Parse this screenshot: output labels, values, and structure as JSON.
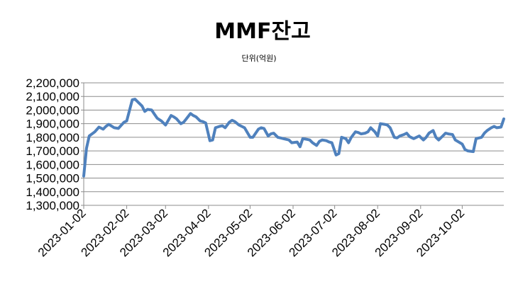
{
  "chart_data": {
    "type": "line",
    "title": "MMF잔고",
    "subtitle": "단위(억원)",
    "xlabel": "",
    "ylabel": "",
    "ylim": [
      1300000,
      2200000
    ],
    "y_ticks": [
      1300000,
      1400000,
      1500000,
      1600000,
      1700000,
      1800000,
      1900000,
      2000000,
      2100000,
      2200000
    ],
    "y_tick_labels": [
      "1,300,000",
      "1,400,000",
      "1,500,000",
      "1,600,000",
      "1,700,000",
      "1,800,000",
      "1,900,000",
      "2,000,000",
      "2,100,000",
      "2,200,000"
    ],
    "x_tick_labels": [
      "2023-01-02",
      "2023-02-02",
      "2023-03-02",
      "2023-04-02",
      "2023-05-02",
      "2023-06-02",
      "2023-07-02",
      "2023-08-02",
      "2023-09-02",
      "2023-10-02"
    ],
    "grid": true,
    "line_color": "#4f81bd",
    "series": [
      {
        "x": [
          "2023-01-02",
          "2023-01-04",
          "2023-01-06",
          "2023-01-10",
          "2023-01-13",
          "2023-01-16",
          "2023-01-18",
          "2023-01-20",
          "2023-01-24",
          "2023-01-27",
          "2023-01-31",
          "2023-02-02",
          "2023-02-06",
          "2023-02-08",
          "2023-02-10",
          "2023-02-13",
          "2023-02-15",
          "2023-02-17",
          "2023-02-20",
          "2023-02-22",
          "2023-02-24",
          "2023-02-27",
          "2023-03-02",
          "2023-03-06",
          "2023-03-08",
          "2023-03-10",
          "2023-03-13",
          "2023-03-15",
          "2023-03-17",
          "2023-03-20",
          "2023-03-22",
          "2023-03-24",
          "2023-03-27",
          "2023-03-29",
          "2023-03-31",
          "2023-04-03",
          "2023-04-05",
          "2023-04-07",
          "2023-04-10",
          "2023-04-12",
          "2023-04-14",
          "2023-04-17",
          "2023-04-19",
          "2023-04-21",
          "2023-04-24",
          "2023-04-26",
          "2023-04-28",
          "2023-05-02",
          "2023-05-04",
          "2023-05-08",
          "2023-05-10",
          "2023-05-12",
          "2023-05-15",
          "2023-05-17",
          "2023-05-19",
          "2023-05-22",
          "2023-05-24",
          "2023-05-26",
          "2023-05-30",
          "2023-06-01",
          "2023-06-05",
          "2023-06-07",
          "2023-06-09",
          "2023-06-12",
          "2023-06-14",
          "2023-06-16",
          "2023-06-19",
          "2023-06-21",
          "2023-06-23",
          "2023-06-26",
          "2023-06-28",
          "2023-06-30",
          "2023-07-03",
          "2023-07-05",
          "2023-07-07",
          "2023-07-10",
          "2023-07-12",
          "2023-07-14",
          "2023-07-17",
          "2023-07-19",
          "2023-07-21",
          "2023-07-24",
          "2023-07-26",
          "2023-07-28",
          "2023-07-31",
          "2023-08-02",
          "2023-08-04",
          "2023-08-07",
          "2023-08-09",
          "2023-08-11",
          "2023-08-14",
          "2023-08-16",
          "2023-08-18",
          "2023-08-21",
          "2023-08-23",
          "2023-08-25",
          "2023-08-28",
          "2023-08-30",
          "2023-09-01",
          "2023-09-04",
          "2023-09-06",
          "2023-09-08",
          "2023-09-11",
          "2023-09-13",
          "2023-09-15",
          "2023-09-18",
          "2023-09-20",
          "2023-09-22",
          "2023-09-25",
          "2023-09-27",
          "2023-10-02",
          "2023-10-04",
          "2023-10-06",
          "2023-10-10",
          "2023-10-12",
          "2023-10-16",
          "2023-10-18",
          "2023-10-20",
          "2023-10-23",
          "2023-10-25",
          "2023-10-27",
          "2023-10-30",
          "2023-11-01"
        ],
        "values": [
          1515000,
          1720000,
          1810000,
          1840000,
          1875000,
          1860000,
          1880000,
          1895000,
          1870000,
          1865000,
          1910000,
          1920000,
          2075000,
          2080000,
          2060000,
          2030000,
          1990000,
          2005000,
          2000000,
          1970000,
          1940000,
          1920000,
          1890000,
          1960000,
          1950000,
          1935000,
          1900000,
          1910000,
          1935000,
          1975000,
          1960000,
          1950000,
          1920000,
          1915000,
          1905000,
          1775000,
          1780000,
          1870000,
          1880000,
          1885000,
          1870000,
          1910000,
          1925000,
          1915000,
          1890000,
          1880000,
          1870000,
          1800000,
          1800000,
          1860000,
          1870000,
          1865000,
          1810000,
          1825000,
          1830000,
          1800000,
          1795000,
          1790000,
          1780000,
          1760000,
          1765000,
          1730000,
          1790000,
          1785000,
          1780000,
          1760000,
          1740000,
          1770000,
          1780000,
          1775000,
          1765000,
          1760000,
          1670000,
          1680000,
          1800000,
          1790000,
          1760000,
          1800000,
          1840000,
          1835000,
          1825000,
          1830000,
          1840000,
          1870000,
          1840000,
          1810000,
          1900000,
          1895000,
          1890000,
          1870000,
          1800000,
          1795000,
          1810000,
          1820000,
          1830000,
          1805000,
          1790000,
          1800000,
          1810000,
          1780000,
          1800000,
          1830000,
          1850000,
          1800000,
          1780000,
          1810000,
          1830000,
          1825000,
          1820000,
          1780000,
          1750000,
          1710000,
          1700000,
          1695000,
          1790000,
          1800000,
          1830000,
          1850000,
          1870000,
          1880000,
          1870000,
          1875000,
          1935000
        ]
      }
    ]
  }
}
